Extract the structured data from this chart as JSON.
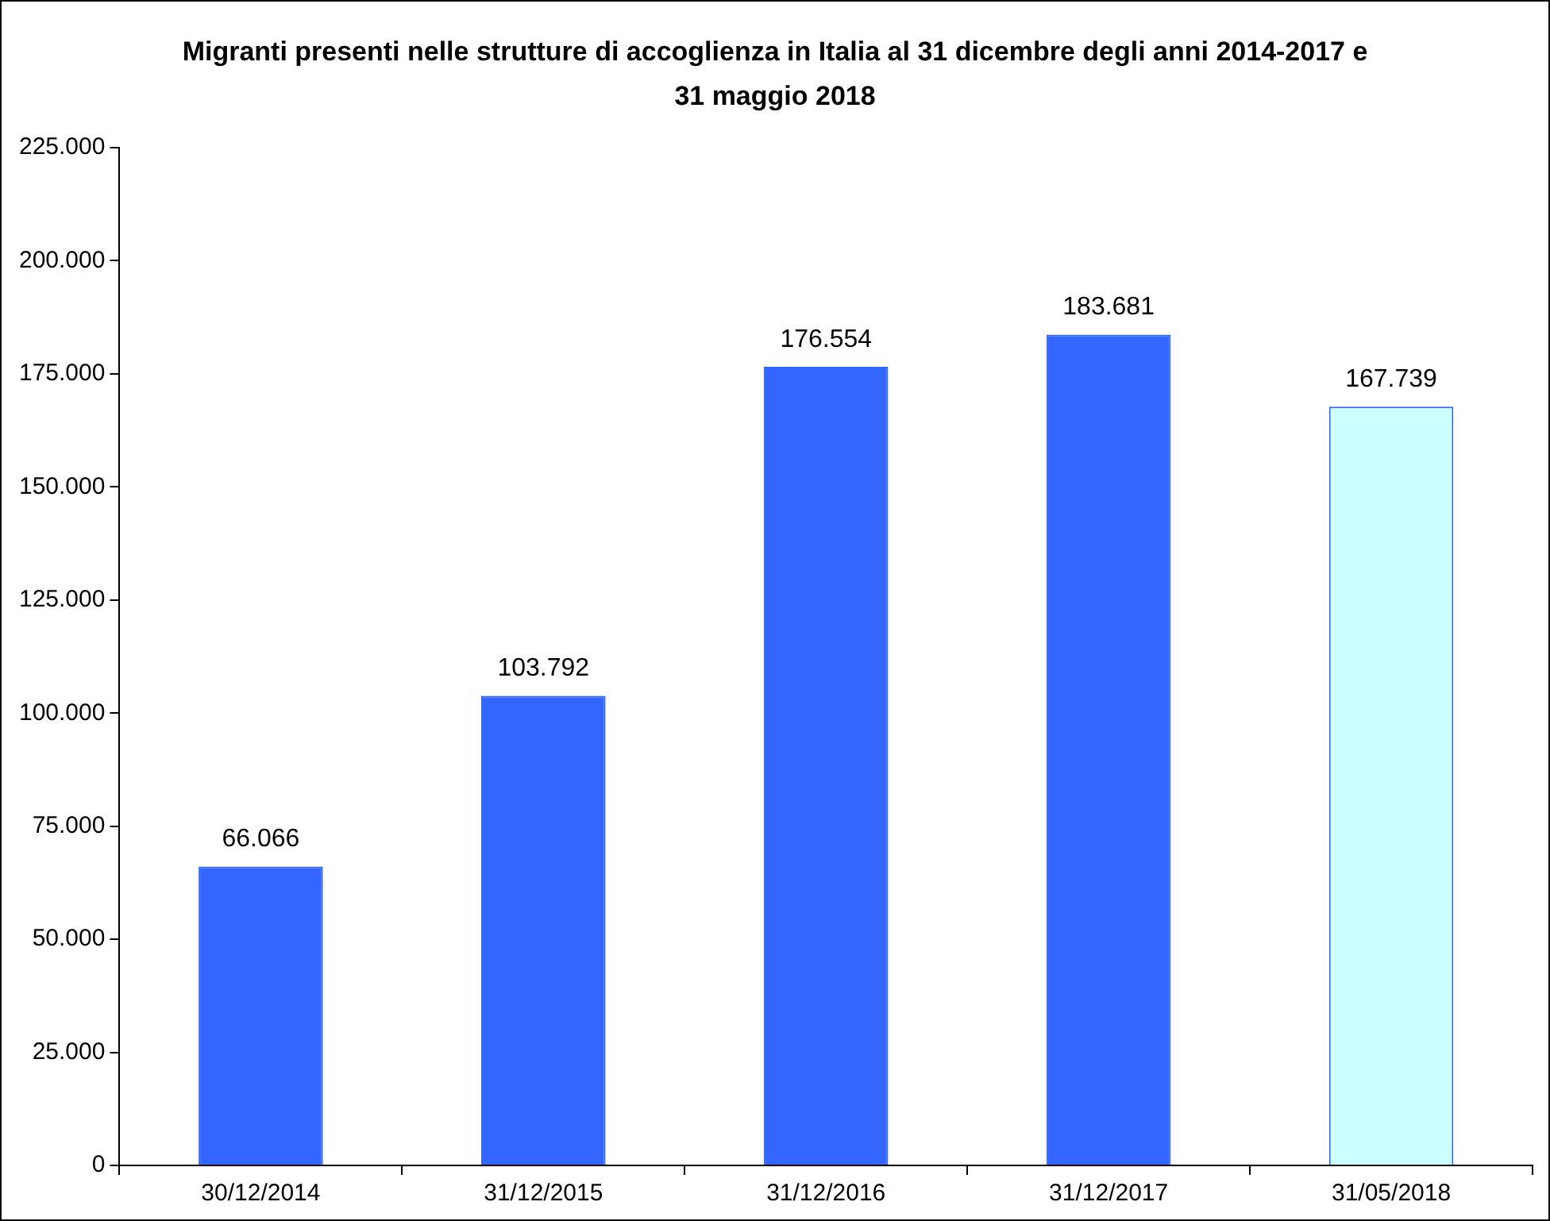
{
  "chart_data": {
    "type": "bar",
    "title": "Migranti presenti nelle strutture di accoglienza in Italia al 31 dicembre degli anni 2014-2017 e 31 maggio 2018",
    "categories": [
      "30/12/2014",
      "31/12/2015",
      "31/12/2016",
      "31/12/2017",
      "31/05/2018"
    ],
    "values": [
      66066,
      103792,
      176554,
      183681,
      167739
    ],
    "colors": [
      "#3366ff",
      "#3366ff",
      "#3366ff",
      "#3366ff",
      "#ccffff"
    ],
    "value_labels": [
      "66.066",
      "103.792",
      "176.554",
      "183.681",
      "167.739"
    ],
    "ylim": [
      0,
      225000
    ],
    "yticks": [
      {
        "value": 0,
        "label": "0"
      },
      {
        "value": 25000,
        "label": "25.000"
      },
      {
        "value": 50000,
        "label": "50.000"
      },
      {
        "value": 75000,
        "label": "75.000"
      },
      {
        "value": 100000,
        "label": "100.000"
      },
      {
        "value": 125000,
        "label": "125.000"
      },
      {
        "value": 150000,
        "label": "150.000"
      },
      {
        "value": 175000,
        "label": "175.000"
      },
      {
        "value": 200000,
        "label": "200.000"
      },
      {
        "value": 225000,
        "label": "225.000"
      }
    ],
    "grid": false,
    "legend": false
  }
}
